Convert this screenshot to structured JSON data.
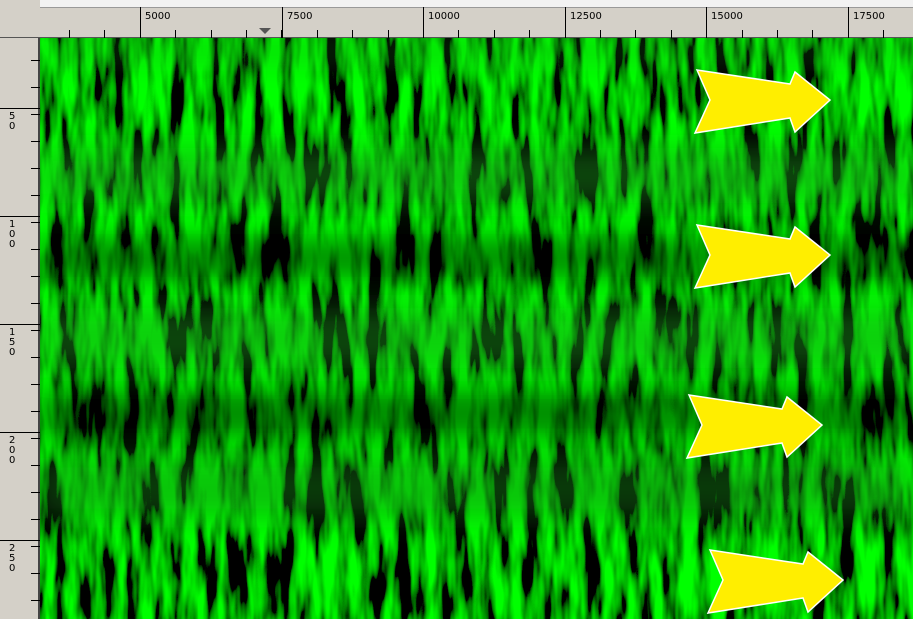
{
  "top_ruler": {
    "labels": [
      "5000",
      "7500",
      "10000",
      "12500",
      "15000",
      "17500"
    ]
  },
  "left_ruler": {
    "labels": [
      "50",
      "100",
      "150",
      "200",
      "250"
    ]
  }
}
